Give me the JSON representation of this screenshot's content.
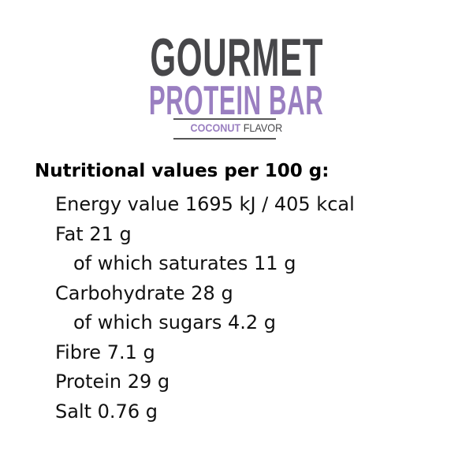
{
  "logo": {
    "line1": "GOURMET",
    "line2": "PROTEIN BAR",
    "flavor_accent": "COCONUT",
    "flavor_rest": "FLAVOR",
    "colors": {
      "dark": "#47474a",
      "purple": "#9a7fc1"
    }
  },
  "nutrition": {
    "heading": "Nutritional values per 100 g:",
    "rows": [
      {
        "text": "Energy value 1695 kJ / 405 kcal",
        "indent": false
      },
      {
        "text": "Fat 21 g",
        "indent": false
      },
      {
        "text": "of which saturates 11 g",
        "indent": true
      },
      {
        "text": "Carbohydrate 28 g",
        "indent": false
      },
      {
        "text": "of which sugars 4.2 g",
        "indent": true
      },
      {
        "text": "Fibre 7.1 g",
        "indent": false
      },
      {
        "text": "Protein 29 g",
        "indent": false
      },
      {
        "text": "Salt 0.76 g",
        "indent": false
      }
    ]
  }
}
